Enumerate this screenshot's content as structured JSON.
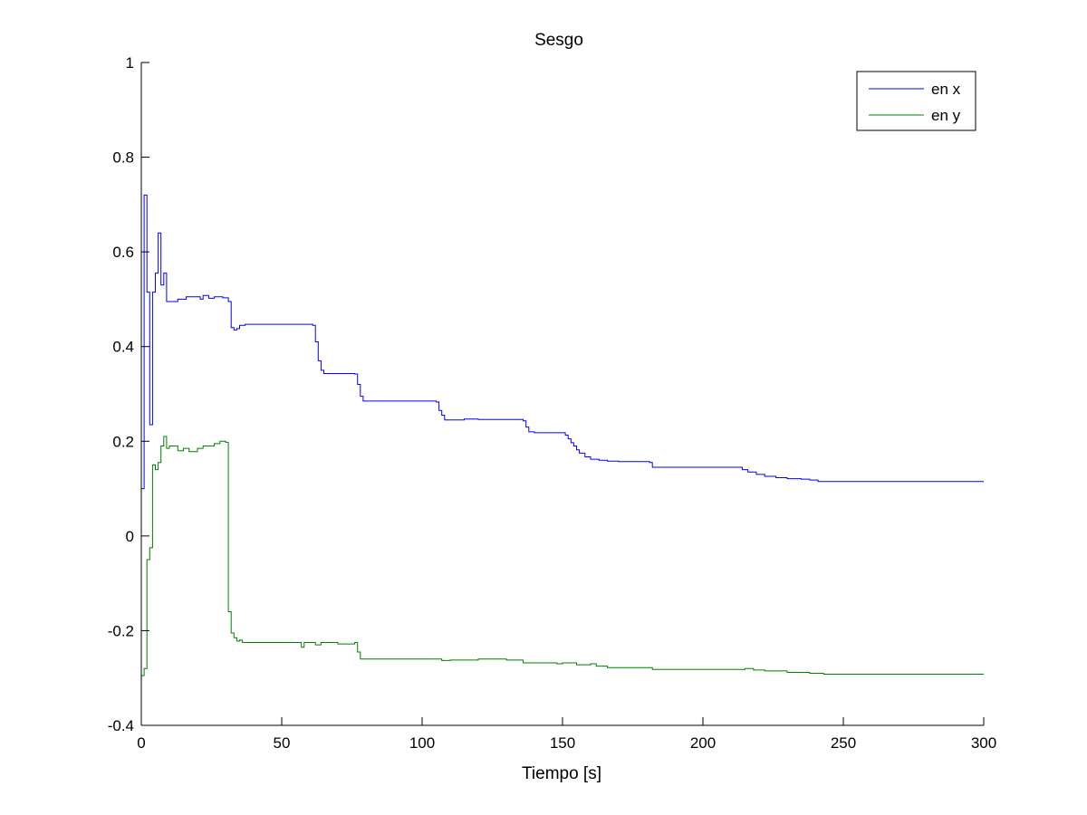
{
  "chart_data": {
    "type": "line",
    "title": "Sesgo",
    "xlabel": "Tiempo [s]",
    "ylabel": "",
    "xlim": [
      0,
      300
    ],
    "ylim": [
      -0.4,
      1
    ],
    "xticks": [
      0,
      50,
      100,
      150,
      200,
      250,
      300
    ],
    "xtick_labels": [
      "0",
      "50",
      "100",
      "150",
      "200",
      "250",
      "300"
    ],
    "yticks": [
      -0.4,
      -0.2,
      0,
      0.2,
      0.4,
      0.6,
      0.8,
      1
    ],
    "ytick_labels": [
      "-0.4",
      "-0.2",
      "0",
      "0.2",
      "0.4",
      "0.6",
      "0.8",
      "1"
    ],
    "grid": false,
    "legend_position": "top-right",
    "series": [
      {
        "name": "en x",
        "color": "#0000ff",
        "step": true,
        "points": [
          [
            0,
            0.1
          ],
          [
            1,
            0.72
          ],
          [
            2,
            0.515
          ],
          [
            3,
            0.235
          ],
          [
            4,
            0.515
          ],
          [
            5,
            0.555
          ],
          [
            6,
            0.64
          ],
          [
            7,
            0.53
          ],
          [
            8,
            0.555
          ],
          [
            9,
            0.495
          ],
          [
            11,
            0.495
          ],
          [
            13,
            0.5
          ],
          [
            16,
            0.505
          ],
          [
            19,
            0.505
          ],
          [
            21,
            0.5
          ],
          [
            22,
            0.508
          ],
          [
            24,
            0.502
          ],
          [
            26,
            0.505
          ],
          [
            29,
            0.503
          ],
          [
            31,
            0.495
          ],
          [
            32,
            0.44
          ],
          [
            33,
            0.435
          ],
          [
            34,
            0.438
          ],
          [
            35,
            0.445
          ],
          [
            37,
            0.447
          ],
          [
            50,
            0.447
          ],
          [
            61,
            0.445
          ],
          [
            62,
            0.41
          ],
          [
            63,
            0.37
          ],
          [
            64,
            0.35
          ],
          [
            65,
            0.343
          ],
          [
            70,
            0.343
          ],
          [
            76,
            0.342
          ],
          [
            77,
            0.32
          ],
          [
            78,
            0.295
          ],
          [
            79,
            0.285
          ],
          [
            100,
            0.285
          ],
          [
            105,
            0.283
          ],
          [
            106,
            0.265
          ],
          [
            107,
            0.255
          ],
          [
            108,
            0.245
          ],
          [
            112,
            0.245
          ],
          [
            115,
            0.247
          ],
          [
            120,
            0.246
          ],
          [
            130,
            0.246
          ],
          [
            136,
            0.243
          ],
          [
            137,
            0.23
          ],
          [
            138,
            0.22
          ],
          [
            140,
            0.218
          ],
          [
            148,
            0.218
          ],
          [
            151,
            0.213
          ],
          [
            152,
            0.205
          ],
          [
            153,
            0.197
          ],
          [
            154,
            0.19
          ],
          [
            155,
            0.182
          ],
          [
            156,
            0.175
          ],
          [
            158,
            0.167
          ],
          [
            160,
            0.162
          ],
          [
            163,
            0.16
          ],
          [
            166,
            0.158
          ],
          [
            170,
            0.157
          ],
          [
            181,
            0.155
          ],
          [
            182,
            0.145
          ],
          [
            200,
            0.145
          ],
          [
            212,
            0.145
          ],
          [
            214,
            0.14
          ],
          [
            216,
            0.135
          ],
          [
            219,
            0.13
          ],
          [
            222,
            0.126
          ],
          [
            226,
            0.123
          ],
          [
            230,
            0.121
          ],
          [
            235,
            0.12
          ],
          [
            238,
            0.118
          ],
          [
            241,
            0.115
          ],
          [
            245,
            0.115
          ],
          [
            300,
            0.115
          ]
        ]
      },
      {
        "name": "en y",
        "color": "#008000",
        "step": true,
        "points": [
          [
            0,
            -0.295
          ],
          [
            1,
            -0.28
          ],
          [
            2,
            -0.05
          ],
          [
            3,
            -0.025
          ],
          [
            4,
            0.15
          ],
          [
            5,
            0.14
          ],
          [
            6,
            0.155
          ],
          [
            7,
            0.19
          ],
          [
            8,
            0.21
          ],
          [
            9,
            0.185
          ],
          [
            10,
            0.19
          ],
          [
            11,
            0.19
          ],
          [
            13,
            0.18
          ],
          [
            15,
            0.185
          ],
          [
            17,
            0.178
          ],
          [
            20,
            0.185
          ],
          [
            22,
            0.19
          ],
          [
            24,
            0.19
          ],
          [
            26,
            0.195
          ],
          [
            28,
            0.2
          ],
          [
            30,
            0.198
          ],
          [
            31,
            -0.16
          ],
          [
            32,
            -0.205
          ],
          [
            33,
            -0.215
          ],
          [
            34,
            -0.222
          ],
          [
            35,
            -0.22
          ],
          [
            36,
            -0.225
          ],
          [
            40,
            -0.225
          ],
          [
            50,
            -0.225
          ],
          [
            56,
            -0.225
          ],
          [
            57,
            -0.235
          ],
          [
            58,
            -0.225
          ],
          [
            62,
            -0.23
          ],
          [
            64,
            -0.225
          ],
          [
            70,
            -0.228
          ],
          [
            76,
            -0.225
          ],
          [
            77,
            -0.245
          ],
          [
            78,
            -0.26
          ],
          [
            80,
            -0.26
          ],
          [
            100,
            -0.26
          ],
          [
            107,
            -0.263
          ],
          [
            110,
            -0.262
          ],
          [
            120,
            -0.26
          ],
          [
            130,
            -0.262
          ],
          [
            135,
            -0.262
          ],
          [
            136,
            -0.268
          ],
          [
            140,
            -0.268
          ],
          [
            148,
            -0.27
          ],
          [
            150,
            -0.268
          ],
          [
            155,
            -0.272
          ],
          [
            160,
            -0.27
          ],
          [
            162,
            -0.275
          ],
          [
            166,
            -0.278
          ],
          [
            180,
            -0.278
          ],
          [
            182,
            -0.282
          ],
          [
            200,
            -0.282
          ],
          [
            210,
            -0.282
          ],
          [
            215,
            -0.28
          ],
          [
            218,
            -0.283
          ],
          [
            222,
            -0.285
          ],
          [
            230,
            -0.288
          ],
          [
            238,
            -0.29
          ],
          [
            243,
            -0.292
          ],
          [
            300,
            -0.292
          ]
        ]
      }
    ]
  }
}
